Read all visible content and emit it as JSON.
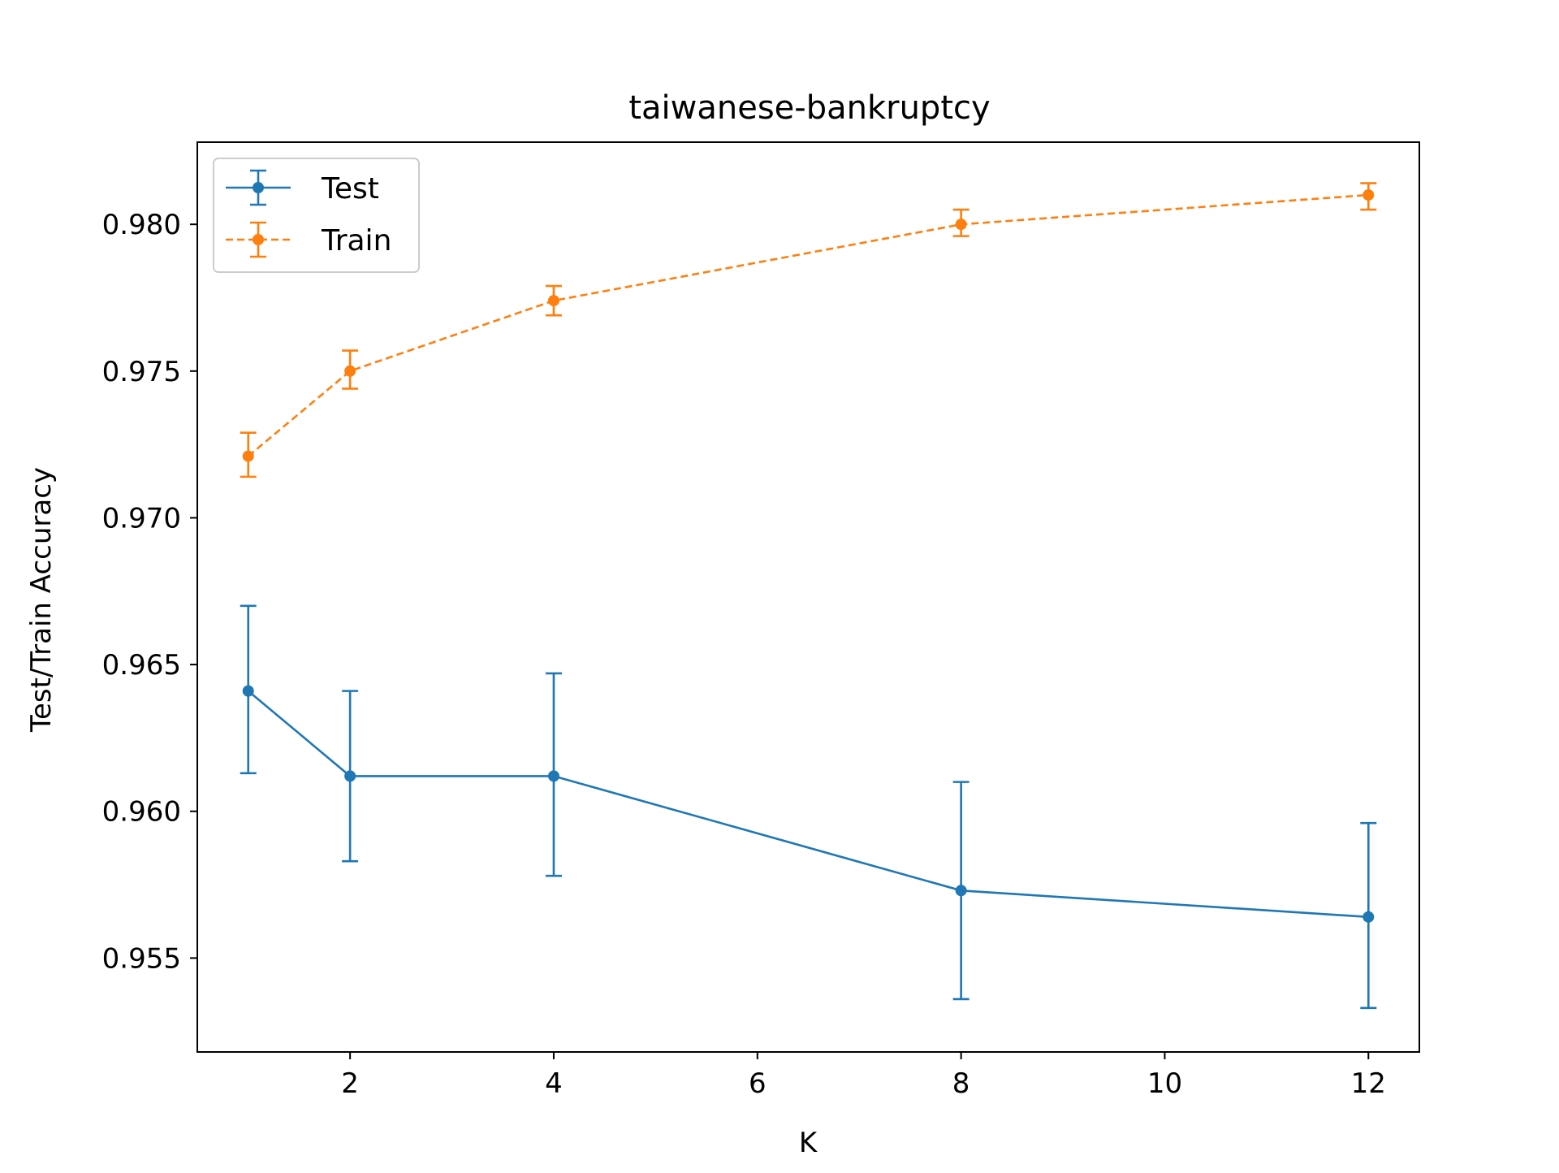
{
  "chart_data": {
    "type": "line",
    "title": "taiwanese-bankruptcy",
    "xlabel": "K",
    "ylabel": "Test/Train Accuracy",
    "xlim": [
      0.5,
      12.5
    ],
    "ylim": [
      0.9518,
      0.9828
    ],
    "xticks": [
      2,
      4,
      6,
      8,
      10,
      12
    ],
    "xtick_labels": [
      "2",
      "4",
      "6",
      "8",
      "10",
      "12"
    ],
    "yticks": [
      0.955,
      0.96,
      0.965,
      0.97,
      0.975,
      0.98
    ],
    "ytick_labels": [
      "0.955",
      "0.960",
      "0.965",
      "0.970",
      "0.975",
      "0.980"
    ],
    "grid": false,
    "legend_position": "top-left",
    "x": [
      1,
      2,
      4,
      8,
      12
    ],
    "series": [
      {
        "name": "Test",
        "values": [
          0.9641,
          0.9612,
          0.9612,
          0.9573,
          0.9564
        ],
        "err_low": [
          0.9613,
          0.9583,
          0.9578,
          0.9536,
          0.9533
        ],
        "err_high": [
          0.967,
          0.9641,
          0.9647,
          0.961,
          0.9596
        ],
        "color": "#1f77b4",
        "linestyle": "solid"
      },
      {
        "name": "Train",
        "values": [
          0.9721,
          0.975,
          0.9774,
          0.98,
          0.981
        ],
        "err_low": [
          0.9714,
          0.9744,
          0.9769,
          0.9796,
          0.9805
        ],
        "err_high": [
          0.9729,
          0.9757,
          0.9779,
          0.9805,
          0.9814
        ],
        "color": "#ff7f0e",
        "linestyle": "dashed"
      }
    ]
  }
}
